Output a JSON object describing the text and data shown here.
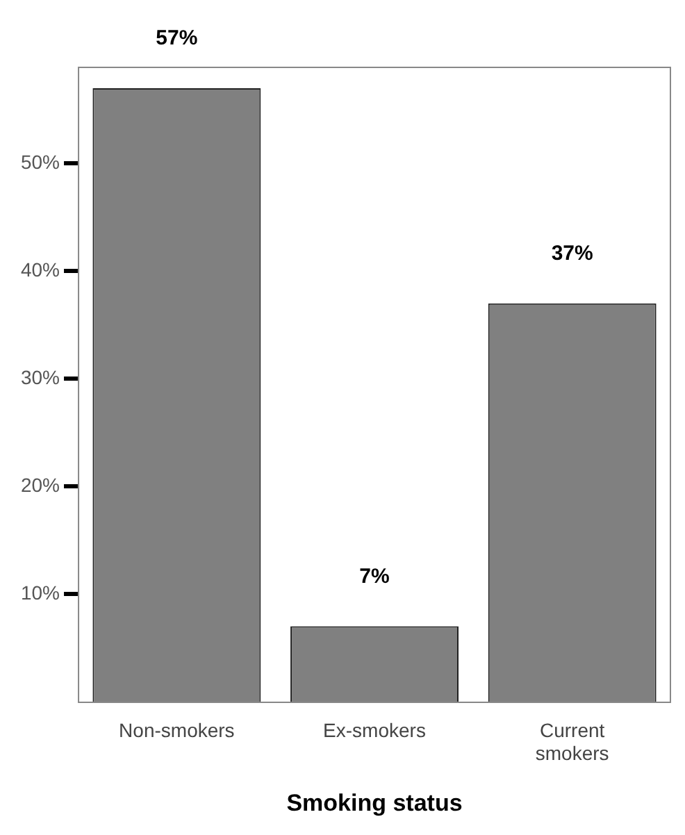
{
  "chart_data": {
    "type": "bar",
    "xlabel": "Smoking status",
    "categories": [
      "Non-smokers",
      "Ex-smokers",
      "Current smokers"
    ],
    "values": [
      57,
      7,
      37
    ],
    "value_labels": [
      "57%",
      "7%",
      "37%"
    ],
    "color": "#808080",
    "ylim": [
      0,
      59
    ],
    "yticks": [
      {
        "value": 10,
        "label": "10%"
      },
      {
        "value": 20,
        "label": "20%"
      },
      {
        "value": 30,
        "label": "30%"
      },
      {
        "value": 40,
        "label": "40%"
      },
      {
        "value": 50,
        "label": "50%"
      }
    ],
    "grid": false,
    "legend": false
  }
}
